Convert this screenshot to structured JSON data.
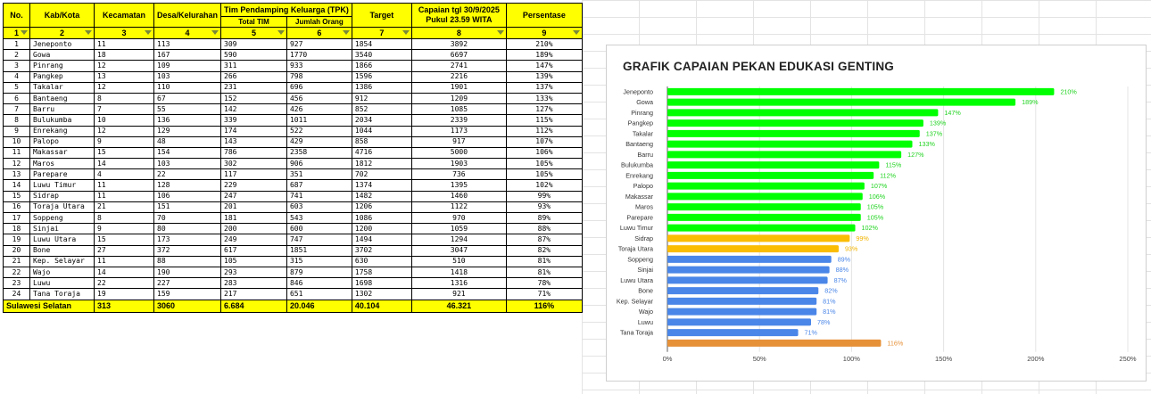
{
  "table": {
    "headers": {
      "no": "No.",
      "kab": "Kab/Kota",
      "kec": "Kecamatan",
      "desa": "Desa/Kelurahan",
      "tpk_group": "Tim Pendamping Keluarga (TPK)",
      "tpk_tim": "Total TIM",
      "tpk_org": "Jumlah Orang",
      "target": "Target",
      "capaian_line1": "Capaian tgl 30/9/2025",
      "capaian_line2": "Pukul 23.59 WITA",
      "persen": "Persentase"
    },
    "index_row": [
      "1",
      "2",
      "3",
      "4",
      "5",
      "6",
      "7",
      "8",
      "9"
    ],
    "rows": [
      [
        "1",
        "Jeneponto",
        "11",
        "113",
        "309",
        "927",
        "1854",
        "3892",
        "210%"
      ],
      [
        "2",
        "Gowa",
        "18",
        "167",
        "590",
        "1770",
        "3540",
        "6697",
        "189%"
      ],
      [
        "3",
        "Pinrang",
        "12",
        "109",
        "311",
        "933",
        "1866",
        "2741",
        "147%"
      ],
      [
        "4",
        "Pangkep",
        "13",
        "103",
        "266",
        "798",
        "1596",
        "2216",
        "139%"
      ],
      [
        "5",
        "Takalar",
        "12",
        "110",
        "231",
        "696",
        "1386",
        "1901",
        "137%"
      ],
      [
        "6",
        "Bantaeng",
        "8",
        "67",
        "152",
        "456",
        "912",
        "1209",
        "133%"
      ],
      [
        "7",
        "Barru",
        "7",
        "55",
        "142",
        "426",
        "852",
        "1085",
        "127%"
      ],
      [
        "8",
        "Bulukumba",
        "10",
        "136",
        "339",
        "1011",
        "2034",
        "2339",
        "115%"
      ],
      [
        "9",
        "Enrekang",
        "12",
        "129",
        "174",
        "522",
        "1044",
        "1173",
        "112%"
      ],
      [
        "10",
        "Palopo",
        "9",
        "48",
        "143",
        "429",
        "858",
        "917",
        "107%"
      ],
      [
        "11",
        "Makassar",
        "15",
        "154",
        "786",
        "2358",
        "4716",
        "5000",
        "106%"
      ],
      [
        "12",
        "Maros",
        "14",
        "103",
        "302",
        "906",
        "1812",
        "1903",
        "105%"
      ],
      [
        "13",
        "Parepare",
        "4",
        "22",
        "117",
        "351",
        "702",
        "736",
        "105%"
      ],
      [
        "14",
        "Luwu Timur",
        "11",
        "128",
        "229",
        "687",
        "1374",
        "1395",
        "102%"
      ],
      [
        "15",
        "Sidrap",
        "11",
        "106",
        "247",
        "741",
        "1482",
        "1460",
        "99%"
      ],
      [
        "16",
        "Toraja Utara",
        "21",
        "151",
        "201",
        "603",
        "1206",
        "1122",
        "93%"
      ],
      [
        "17",
        "Soppeng",
        "8",
        "70",
        "181",
        "543",
        "1086",
        "970",
        "89%"
      ],
      [
        "18",
        "Sinjai",
        "9",
        "80",
        "200",
        "600",
        "1200",
        "1059",
        "88%"
      ],
      [
        "19",
        "Luwu Utara",
        "15",
        "173",
        "249",
        "747",
        "1494",
        "1294",
        "87%"
      ],
      [
        "20",
        "Bone",
        "27",
        "372",
        "617",
        "1851",
        "3702",
        "3047",
        "82%"
      ],
      [
        "21",
        "Kep. Selayar",
        "11",
        "88",
        "105",
        "315",
        "630",
        "510",
        "81%"
      ],
      [
        "22",
        "Wajo",
        "14",
        "190",
        "293",
        "879",
        "1758",
        "1418",
        "81%"
      ],
      [
        "23",
        "Luwu",
        "22",
        "227",
        "283",
        "846",
        "1698",
        "1316",
        "78%"
      ],
      [
        "24",
        "Tana Toraja",
        "19",
        "159",
        "217",
        "651",
        "1302",
        "921",
        "71%"
      ]
    ],
    "total": {
      "label": "Sulawesi Selatan",
      "kec": "313",
      "desa": "3060",
      "tim": "6.684",
      "org": "20.046",
      "target": "40.104",
      "capaian": "46.321",
      "persen": "116%"
    }
  },
  "chart_data": {
    "type": "bar",
    "orientation": "horizontal",
    "title": "GRAFIK CAPAIAN PEKAN EDUKASI GENTING",
    "categories": [
      "Jeneponto",
      "Gowa",
      "Pinrang",
      "Pangkep",
      "Takalar",
      "Bantaeng",
      "Barru",
      "Bulukumba",
      "Enrekang",
      "Palopo",
      "Makassar",
      "Maros",
      "Parepare",
      "Luwu Timur",
      "Sidrap",
      "Toraja Utara",
      "Soppeng",
      "Sinjai",
      "Luwu Utara",
      "Bone",
      "Kep. Selayar",
      "Wajo",
      "Luwu",
      "Tana Toraja",
      ""
    ],
    "values": [
      210,
      189,
      147,
      139,
      137,
      133,
      127,
      115,
      112,
      107,
      106,
      105,
      105,
      102,
      99,
      93,
      89,
      88,
      87,
      82,
      81,
      81,
      78,
      71,
      116
    ],
    "value_labels": [
      "210%",
      "189%",
      "147%",
      "139%",
      "137%",
      "133%",
      "127%",
      "115%",
      "112%",
      "107%",
      "106%",
      "105%",
      "105%",
      "102%",
      "99%",
      "93%",
      "89%",
      "88%",
      "87%",
      "82%",
      "81%",
      "81%",
      "78%",
      "71%",
      "116%"
    ],
    "bar_colors": [
      "#00ff00",
      "#00ff00",
      "#00ff00",
      "#00ff00",
      "#00ff00",
      "#00ff00",
      "#00ff00",
      "#00ff00",
      "#00ff00",
      "#00ff00",
      "#00ff00",
      "#00ff00",
      "#00ff00",
      "#00ff00",
      "#fbbc04",
      "#fbbc04",
      "#4a86e8",
      "#4a86e8",
      "#4a86e8",
      "#4a86e8",
      "#4a86e8",
      "#4a86e8",
      "#4a86e8",
      "#4a86e8",
      "#e69138"
    ],
    "label_colors": [
      "#1fd31f",
      "#1fd31f",
      "#1fd31f",
      "#1fd31f",
      "#1fd31f",
      "#1fd31f",
      "#1fd31f",
      "#1fd31f",
      "#1fd31f",
      "#1fd31f",
      "#1fd31f",
      "#1fd31f",
      "#1fd31f",
      "#1fd31f",
      "#f1b400",
      "#f1b400",
      "#4a86e8",
      "#4a86e8",
      "#4a86e8",
      "#4a86e8",
      "#4a86e8",
      "#4a86e8",
      "#4a86e8",
      "#4a86e8",
      "#e69138"
    ],
    "xlim": [
      0,
      250
    ],
    "xticks": [
      0,
      50,
      100,
      150,
      200,
      250
    ],
    "xtick_labels": [
      "0%",
      "50%",
      "100%",
      "150%",
      "200%",
      "250%"
    ],
    "grid": true
  }
}
